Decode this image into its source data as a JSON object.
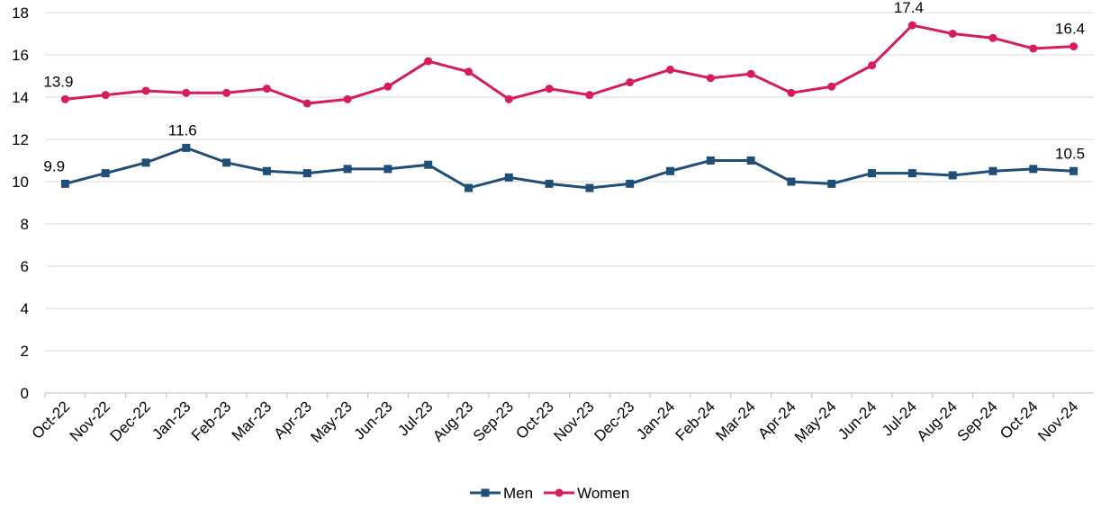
{
  "chart_data": {
    "type": "line",
    "categories": [
      "Oct-22",
      "Nov-22",
      "Dec-22",
      "Jan-23",
      "Feb-23",
      "Mar-23",
      "Apr-23",
      "May-23",
      "Jun-23",
      "Jul-23",
      "Aug-23",
      "Sep-23",
      "Oct-23",
      "Nov-23",
      "Dec-23",
      "Jan-24",
      "Feb-24",
      "Mar-24",
      "Apr-24",
      "May-24",
      "Jun-24",
      "Jul-24",
      "Aug-24",
      "Sep-24",
      "Oct-24",
      "Nov-24"
    ],
    "series": [
      {
        "name": "Men",
        "color": "#1f4e79",
        "marker": "square",
        "labels_at": [
          0,
          3,
          25
        ],
        "values": [
          9.9,
          10.4,
          10.9,
          11.6,
          10.9,
          10.5,
          10.4,
          10.6,
          10.6,
          10.8,
          9.7,
          10.2,
          9.9,
          9.7,
          9.9,
          10.5,
          11.0,
          11.0,
          10.0,
          9.9,
          10.4,
          10.4,
          10.3,
          10.5,
          10.6,
          10.5
        ]
      },
      {
        "name": "Women",
        "color": "#d81b60",
        "marker": "circle",
        "labels_at": [
          0,
          21,
          25
        ],
        "values": [
          13.9,
          14.1,
          14.3,
          14.2,
          14.2,
          14.4,
          13.7,
          13.9,
          14.5,
          15.7,
          15.2,
          13.9,
          14.4,
          14.1,
          14.7,
          15.3,
          14.9,
          15.1,
          14.2,
          14.5,
          15.5,
          17.4,
          17.0,
          16.8,
          16.3,
          16.4
        ]
      }
    ],
    "ylim": [
      0,
      18
    ],
    "yticks": [
      0,
      2,
      4,
      6,
      8,
      10,
      12,
      14,
      16,
      18
    ],
    "grid": true,
    "legend": "bottom"
  }
}
